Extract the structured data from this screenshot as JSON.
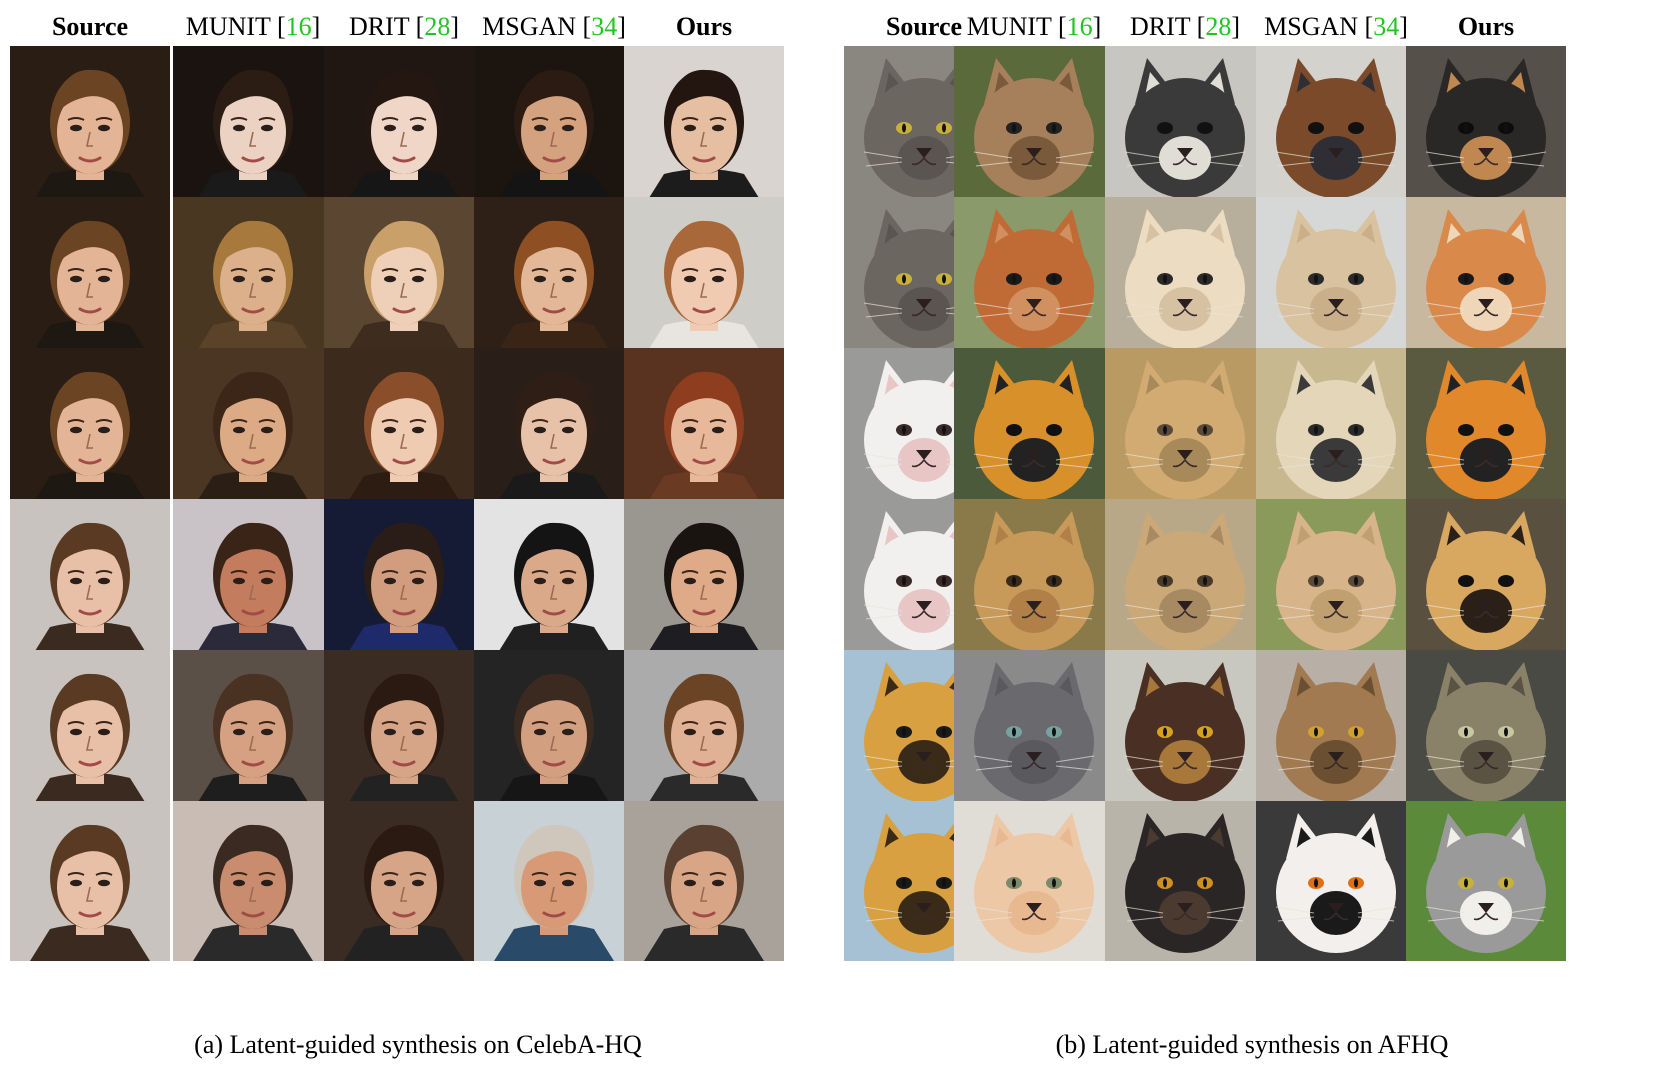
{
  "panels": [
    {
      "id": "a",
      "caption": "(a) Latent-guided synthesis on CelebA-HQ",
      "kind": "face",
      "headers": [
        {
          "name": "Source",
          "ref": "",
          "bold": true
        },
        {
          "name": "MUNIT",
          "ref": "16",
          "bold": false
        },
        {
          "name": "DRIT",
          "ref": "28",
          "bold": false
        },
        {
          "name": "MSGAN",
          "ref": "34",
          "bold": false
        },
        {
          "name": "Ours",
          "ref": "",
          "bold": true
        }
      ],
      "rows": [
        {
          "cells": [
            {
              "bg": "#2a1d14",
              "main": "#e3b495",
              "hair": "#6b4424",
              "dark": "#1e1812"
            },
            {
              "bg": "#1b1310",
              "main": "#ecd2c2",
              "hair": "#2b1d14",
              "dark": "#1a1a1a"
            },
            {
              "bg": "#201712",
              "main": "#efd6c6",
              "hair": "#241712",
              "dark": "#161616"
            },
            {
              "bg": "#1c140f",
              "main": "#d4a27f",
              "hair": "#2b1b12",
              "dark": "#141414"
            },
            {
              "bg": "#d9d4cf",
              "main": "#e6bfa3",
              "hair": "#231510",
              "dark": "#1c1c1c"
            }
          ]
        },
        {
          "cells": [
            {
              "bg": "#2a1d14",
              "main": "#e3b495",
              "hair": "#6b4424",
              "dark": "#1e1812"
            },
            {
              "bg": "#4a3722",
              "main": "#dcb08a",
              "hair": "#a8793d",
              "dark": "#5a4328"
            },
            {
              "bg": "#5b4632",
              "main": "#eed0b8",
              "hair": "#c9a06a",
              "dark": "#3e2c1e"
            },
            {
              "bg": "#2e2016",
              "main": "#e2b898",
              "hair": "#8e4f22",
              "dark": "#3a2416"
            },
            {
              "bg": "#cfcdc8",
              "main": "#f0cbb2",
              "hair": "#a8683a",
              "dark": "#e8e4de"
            }
          ]
        },
        {
          "cells": [
            {
              "bg": "#2a1d14",
              "main": "#e3b495",
              "hair": "#6b4424",
              "dark": "#1e1812"
            },
            {
              "bg": "#4b3624",
              "main": "#dcab86",
              "hair": "#3b2617",
              "dark": "#2b1e14"
            },
            {
              "bg": "#3c2a1c",
              "main": "#eecbb1",
              "hair": "#8a4e2a",
              "dark": "#2c1c12"
            },
            {
              "bg": "#2a1e18",
              "main": "#e8c2a8",
              "hair": "#2e1e16",
              "dark": "#1a1a1a"
            },
            {
              "bg": "#5a3220",
              "main": "#e8b89a",
              "hair": "#8e3e1e",
              "dark": "#6a3a22"
            }
          ]
        },
        {
          "cells": [
            {
              "bg": "#c8c3be",
              "main": "#e8c0a8",
              "hair": "#5a3a22",
              "dark": "#3a2a20"
            },
            {
              "bg": "#c9c3c7",
              "main": "#c47c5e",
              "hair": "#3a2418",
              "dark": "#2a2a3a"
            },
            {
              "bg": "#151b34",
              "main": "#d29c7e",
              "hair": "#2a1c16",
              "dark": "#1f2a6a"
            },
            {
              "bg": "#e3e3e3",
              "main": "#d9a98a",
              "hair": "#141414",
              "dark": "#202020"
            },
            {
              "bg": "#9a9690",
              "main": "#deaa88",
              "hair": "#1a1410",
              "dark": "#1e1e22"
            }
          ]
        },
        {
          "cells": [
            {
              "bg": "#c8c3be",
              "main": "#e8c0a8",
              "hair": "#5a3a22",
              "dark": "#3a2a20"
            },
            {
              "bg": "#5a5048",
              "main": "#d6a182",
              "hair": "#4a3222",
              "dark": "#1e1e1e"
            },
            {
              "bg": "#3a2c22",
              "main": "#d6a486",
              "hair": "#2a1a12",
              "dark": "#222222"
            },
            {
              "bg": "#242424",
              "main": "#d2a080",
              "hair": "#3a2a20",
              "dark": "#161616"
            },
            {
              "bg": "#ababab",
              "main": "#e0b194",
              "hair": "#6a4424",
              "dark": "#2a2a2a"
            }
          ]
        },
        {
          "cells": [
            {
              "bg": "#c8c3be",
              "main": "#e8c0a8",
              "hair": "#5a3a22",
              "dark": "#3a2a20"
            },
            {
              "bg": "#c8bcb4",
              "main": "#c98c6e",
              "hair": "#3a2a22",
              "dark": "#2a2a2a"
            },
            {
              "bg": "#3a2c22",
              "main": "#d6a486",
              "hair": "#2a1a12",
              "dark": "#222222"
            },
            {
              "bg": "#c8d2d6",
              "main": "#d89a76",
              "hair": "#cfc6bc",
              "dark": "#2a4a6a"
            },
            {
              "bg": "#a8a29a",
              "main": "#d9a587",
              "hair": "#5a4030",
              "dark": "#2a2a2a"
            }
          ]
        }
      ]
    },
    {
      "id": "b",
      "caption": "(b) Latent-guided synthesis on AFHQ",
      "kind": "animal",
      "headers": [
        {
          "name": "Source",
          "ref": "",
          "bold": true
        },
        {
          "name": "MUNIT",
          "ref": "16",
          "bold": false
        },
        {
          "name": "DRIT",
          "ref": "28",
          "bold": false
        },
        {
          "name": "MSGAN",
          "ref": "34",
          "bold": false
        },
        {
          "name": "Ours",
          "ref": "",
          "bold": true
        }
      ],
      "rows": [
        {
          "cells": [
            {
              "bg": "#8a8680",
              "main": "#6c6660",
              "hair": "#5a5550",
              "dark": "#c8b03a"
            },
            {
              "bg": "#5a6a3a",
              "main": "#a5805a",
              "hair": "#7a5a3a",
              "dark": "#222222"
            },
            {
              "bg": "#c8c6c0",
              "main": "#3a3a3a",
              "hair": "#e0ddd5",
              "dark": "#111111"
            },
            {
              "bg": "#d4d2cc",
              "main": "#7a4a2a",
              "hair": "#2e2e34",
              "dark": "#111111"
            },
            {
              "bg": "#55504a",
              "main": "#2a2826",
              "hair": "#c08850",
              "dark": "#0c0c0c"
            }
          ]
        },
        {
          "cells": [
            {
              "bg": "#8a8680",
              "main": "#6c6660",
              "hair": "#5a5550",
              "dark": "#c8b03a"
            },
            {
              "bg": "#8a9a6a",
              "main": "#c06a35",
              "hair": "#d09060",
              "dark": "#1a1a1a"
            },
            {
              "bg": "#b8ae9c",
              "main": "#ecdcc2",
              "hair": "#d6c2a2",
              "dark": "#2a2a2a"
            },
            {
              "bg": "#d6d8d8",
              "main": "#d9c2a0",
              "hair": "#cab08a",
              "dark": "#2a2a2a"
            },
            {
              "bg": "#c8b8a0",
              "main": "#d98a4a",
              "hair": "#f0d6b8",
              "dark": "#1a1a1a"
            }
          ]
        },
        {
          "cells": [
            {
              "bg": "#9a9a98",
              "main": "#f2f0ee",
              "hair": "#e8c6c6",
              "dark": "#3a2a2a"
            },
            {
              "bg": "#4a5a3a",
              "main": "#d8902a",
              "hair": "#222222",
              "dark": "#111111"
            },
            {
              "bg": "#b89a62",
              "main": "#d2ab72",
              "hair": "#a88a5a",
              "dark": "#5a4a3a"
            },
            {
              "bg": "#c8b890",
              "main": "#e4d6b8",
              "hair": "#3a3a3a",
              "dark": "#2a2a2a"
            },
            {
              "bg": "#5a5a40",
              "main": "#e0882a",
              "hair": "#222222",
              "dark": "#111111"
            }
          ]
        },
        {
          "cells": [
            {
              "bg": "#9a9a98",
              "main": "#f2f0ee",
              "hair": "#e8c6c6",
              "dark": "#3a2a2a"
            },
            {
              "bg": "#8a7a4a",
              "main": "#c89a5a",
              "hair": "#b08048",
              "dark": "#3a2a1a"
            },
            {
              "bg": "#b8a888",
              "main": "#caa878",
              "hair": "#a88a62",
              "dark": "#4a3a2a"
            },
            {
              "bg": "#8a9a5a",
              "main": "#d8b48a",
              "hair": "#c0a070",
              "dark": "#5a4a3a"
            },
            {
              "bg": "#5a5040",
              "main": "#d8a860",
              "hair": "#2a2018",
              "dark": "#111111"
            }
          ]
        },
        {
          "cells": [
            {
              "bg": "#a6c0d4",
              "main": "#d8a040",
              "hair": "#3a2a18",
              "dark": "#1a1a1a"
            },
            {
              "bg": "#8a8a8a",
              "main": "#6a6a6e",
              "hair": "#5a5a5e",
              "dark": "#7aa0a0"
            },
            {
              "bg": "#c8c8c0",
              "main": "#4a3024",
              "hair": "#a8783a",
              "dark": "#d8a020"
            },
            {
              "bg": "#b8b0a6",
              "main": "#a27a52",
              "hair": "#6a5030",
              "dark": "#d0a030"
            },
            {
              "bg": "#4a4a44",
              "main": "#8a8268",
              "hair": "#5a5242",
              "dark": "#c8c8a0"
            }
          ]
        },
        {
          "cells": [
            {
              "bg": "#a6c0d4",
              "main": "#d8a040",
              "hair": "#3a2a18",
              "dark": "#1a1a1a"
            },
            {
              "bg": "#e0dcd6",
              "main": "#ecc8a6",
              "hair": "#e8b890",
              "dark": "#7a8a6a"
            },
            {
              "bg": "#b8b4aa",
              "main": "#2a2626",
              "hair": "#4a3a30",
              "dark": "#d09020"
            },
            {
              "bg": "#3a3a3a",
              "main": "#f2efec",
              "hair": "#1a1a1a",
              "dark": "#e07010"
            },
            {
              "bg": "#5a8a3a",
              "main": "#9a9a9a",
              "hair": "#f0efea",
              "dark": "#c8b040"
            }
          ]
        }
      ]
    }
  ]
}
